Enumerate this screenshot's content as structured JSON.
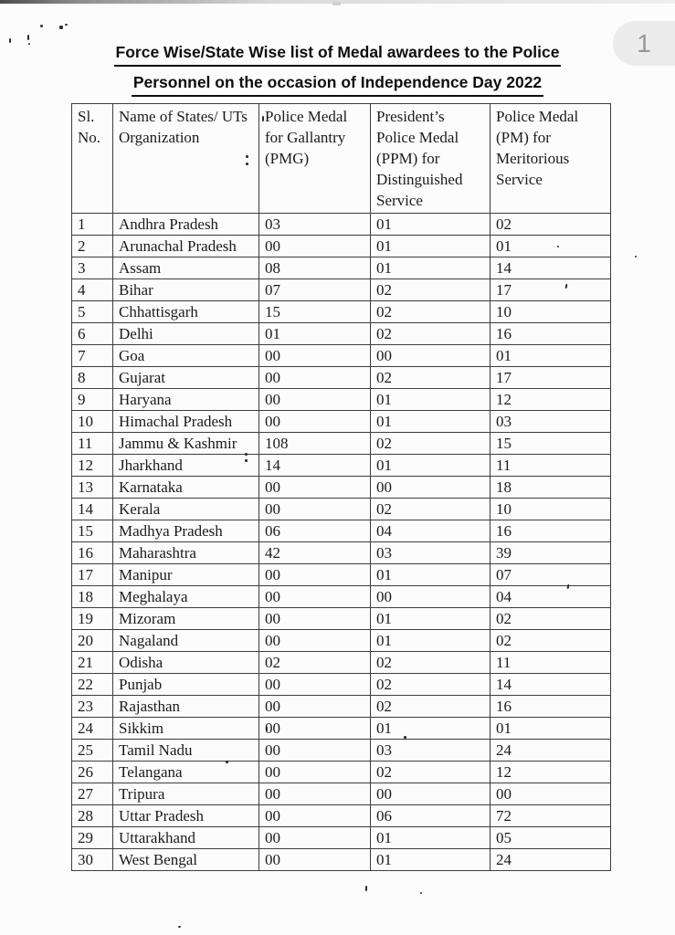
{
  "page_indicator": {
    "number": "1"
  },
  "title": {
    "line1": "Force Wise/State Wise list of Medal awardees to the Police",
    "line2": "Personnel on the occasion of Independence Day 2022"
  },
  "table": {
    "headers": [
      "Sl.\nNo.",
      "Name of States/ UTs\nOrganization",
      "Police Medal\nfor Gallantry\n(PMG)",
      "President’s\nPolice Medal\n(PPM) for\nDistinguished\nService",
      "Police Medal\n(PM) for\nMeritorious\nService"
    ],
    "rows": [
      [
        "1",
        "Andhra Pradesh",
        "03",
        "01",
        "02"
      ],
      [
        "2",
        "Arunachal Pradesh",
        "00",
        "01",
        "01"
      ],
      [
        "3",
        "Assam",
        "08",
        "01",
        "14"
      ],
      [
        "4",
        "Bihar",
        "07",
        "02",
        "17"
      ],
      [
        "5",
        "Chhattisgarh",
        "15",
        "02",
        "10"
      ],
      [
        "6",
        "Delhi",
        "01",
        "02",
        "16"
      ],
      [
        "7",
        "Goa",
        "00",
        "00",
        "01"
      ],
      [
        "8",
        "Gujarat",
        "00",
        "02",
        "17"
      ],
      [
        "9",
        "Haryana",
        "00",
        "01",
        "12"
      ],
      [
        "10",
        "Himachal Pradesh",
        "00",
        "01",
        "03"
      ],
      [
        "11",
        "Jammu & Kashmir",
        "108",
        "02",
        "15"
      ],
      [
        "12",
        "Jharkhand",
        "14",
        "01",
        "11"
      ],
      [
        "13",
        "Karnataka",
        "00",
        "00",
        "18"
      ],
      [
        "14",
        "Kerala",
        "00",
        "02",
        "10"
      ],
      [
        "15",
        "Madhya Pradesh",
        "06",
        "04",
        "16"
      ],
      [
        "16",
        "Maharashtra",
        "42",
        "03",
        "39"
      ],
      [
        "17",
        "Manipur",
        "00",
        "01",
        "07"
      ],
      [
        "18",
        "Meghalaya",
        "00",
        "00",
        "04"
      ],
      [
        "19",
        "Mizoram",
        "00",
        "01",
        "02"
      ],
      [
        "20",
        "Nagaland",
        "00",
        "01",
        "02"
      ],
      [
        "21",
        "Odisha",
        "02",
        "02",
        "11"
      ],
      [
        "22",
        "Punjab",
        "00",
        "02",
        "14"
      ],
      [
        "23",
        "Rajasthan",
        "00",
        "02",
        "16"
      ],
      [
        "24",
        "Sikkim",
        "00",
        "01",
        "01"
      ],
      [
        "25",
        "Tamil Nadu",
        "00",
        "03",
        "24"
      ],
      [
        "26",
        "Telangana",
        "00",
        "02",
        "12"
      ],
      [
        "27",
        "Tripura",
        "00",
        "00",
        "00"
      ],
      [
        "28",
        "Uttar Pradesh",
        "00",
        "06",
        "72"
      ],
      [
        "29",
        "Uttarakhand",
        "00",
        "01",
        "05"
      ],
      [
        "30",
        "West Bengal",
        "00",
        "01",
        "24"
      ]
    ]
  }
}
